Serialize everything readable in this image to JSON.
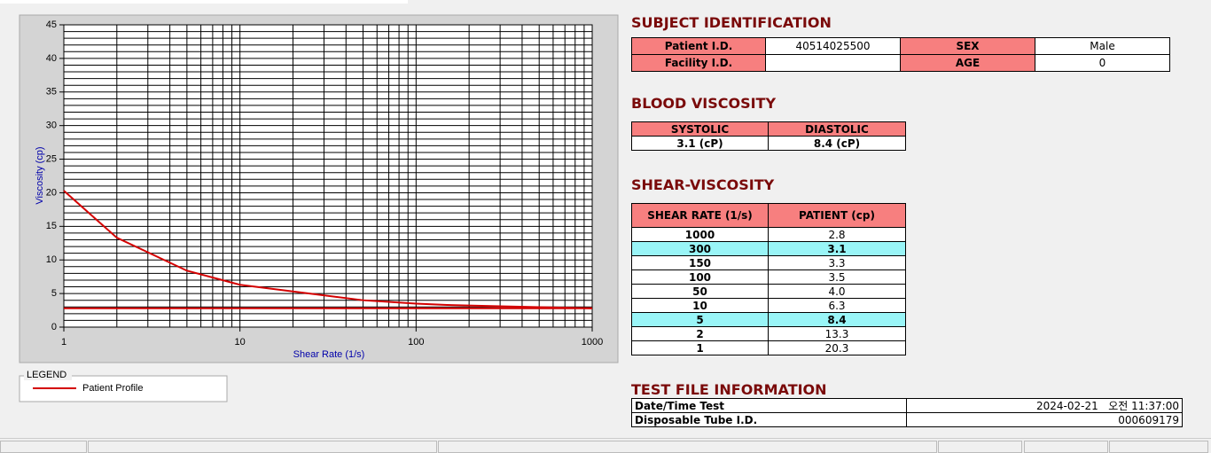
{
  "chart": {
    "type": "line",
    "log_x": true,
    "x_label": "Shear Rate (1/s)",
    "y_label": "Viscosity (cp)",
    "xlim": [
      1,
      1000
    ],
    "ylim": [
      0,
      45
    ],
    "xticks": [
      1,
      10,
      100,
      1000
    ],
    "yticks": [
      0,
      5,
      10,
      15,
      20,
      25,
      30,
      35,
      40,
      45
    ],
    "xgrid": [
      2,
      3,
      4,
      5,
      6,
      7,
      8,
      9,
      20,
      30,
      40,
      50,
      60,
      70,
      80,
      90,
      200,
      300,
      400,
      500,
      600,
      700,
      800,
      900
    ],
    "ygrid": [
      1,
      2,
      3,
      4,
      6,
      7,
      8,
      9,
      11,
      12,
      13,
      14,
      16,
      17,
      18,
      19,
      21,
      22,
      23,
      24,
      26,
      27,
      28,
      29,
      31,
      32,
      33,
      34,
      36,
      37,
      38,
      39,
      41,
      42,
      43,
      44
    ],
    "grid": true,
    "series": [
      {
        "name": "Patient Profile",
        "color": "#d40000",
        "x": [
          1,
          2,
          5,
          10,
          50,
          100,
          150,
          300,
          1000
        ],
        "values": [
          20.3,
          13.3,
          8.4,
          6.3,
          4.0,
          3.5,
          3.3,
          3.1,
          2.8
        ]
      }
    ],
    "flat_line": {
      "color": "#d40000",
      "x": [
        1,
        1000
      ],
      "values": [
        2.8,
        2.8
      ]
    },
    "legend_title": "LEGEND"
  },
  "subject": {
    "title": "SUBJECT IDENTIFICATION",
    "rows": [
      [
        "Patient I.D.",
        "40514025500",
        "SEX",
        "Male"
      ],
      [
        "Facility I.D.",
        null,
        "AGE",
        "0"
      ]
    ]
  },
  "blood": {
    "title": "BLOOD VISCOSITY",
    "header": [
      "SYSTOLIC",
      "DIASTOLIC"
    ],
    "row": [
      "3.1 (cP)",
      "8.4 (cP)"
    ]
  },
  "shear": {
    "title": "SHEAR-VISCOSITY",
    "header": [
      "SHEAR RATE (1/s)",
      "PATIENT (cp)"
    ],
    "rows": [
      {
        "rate": "1000",
        "patient": "2.8"
      },
      {
        "rate": "300",
        "patient": "3.1",
        "highlighted": true
      },
      {
        "rate": "150",
        "patient": "3.3"
      },
      {
        "rate": "100",
        "patient": "3.5"
      },
      {
        "rate": "50",
        "patient": "4.0"
      },
      {
        "rate": "10",
        "patient": "6.3"
      },
      {
        "rate": "5",
        "patient": "8.4",
        "highlighted": true
      },
      {
        "rate": "2",
        "patient": "13.3"
      },
      {
        "rate": "1",
        "patient": "20.3"
      }
    ]
  },
  "testfile": {
    "title": "TEST FILE INFORMATION",
    "rows": [
      [
        "Date/Time Test",
        "2024-02-21   오전 11:37:00"
      ],
      [
        "Disposable Tube I.D.",
        "000609179"
      ]
    ]
  }
}
